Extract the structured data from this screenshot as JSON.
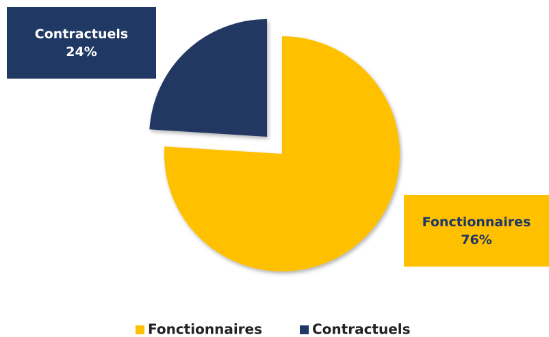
{
  "chart_data": {
    "type": "pie",
    "categories": [
      "Fonctionnaires",
      "Contractuels"
    ],
    "values": [
      76,
      24
    ],
    "value_labels": [
      "76%",
      "24%"
    ],
    "colors": [
      "#FFC000",
      "#203864"
    ],
    "legend": "bottom"
  }
}
